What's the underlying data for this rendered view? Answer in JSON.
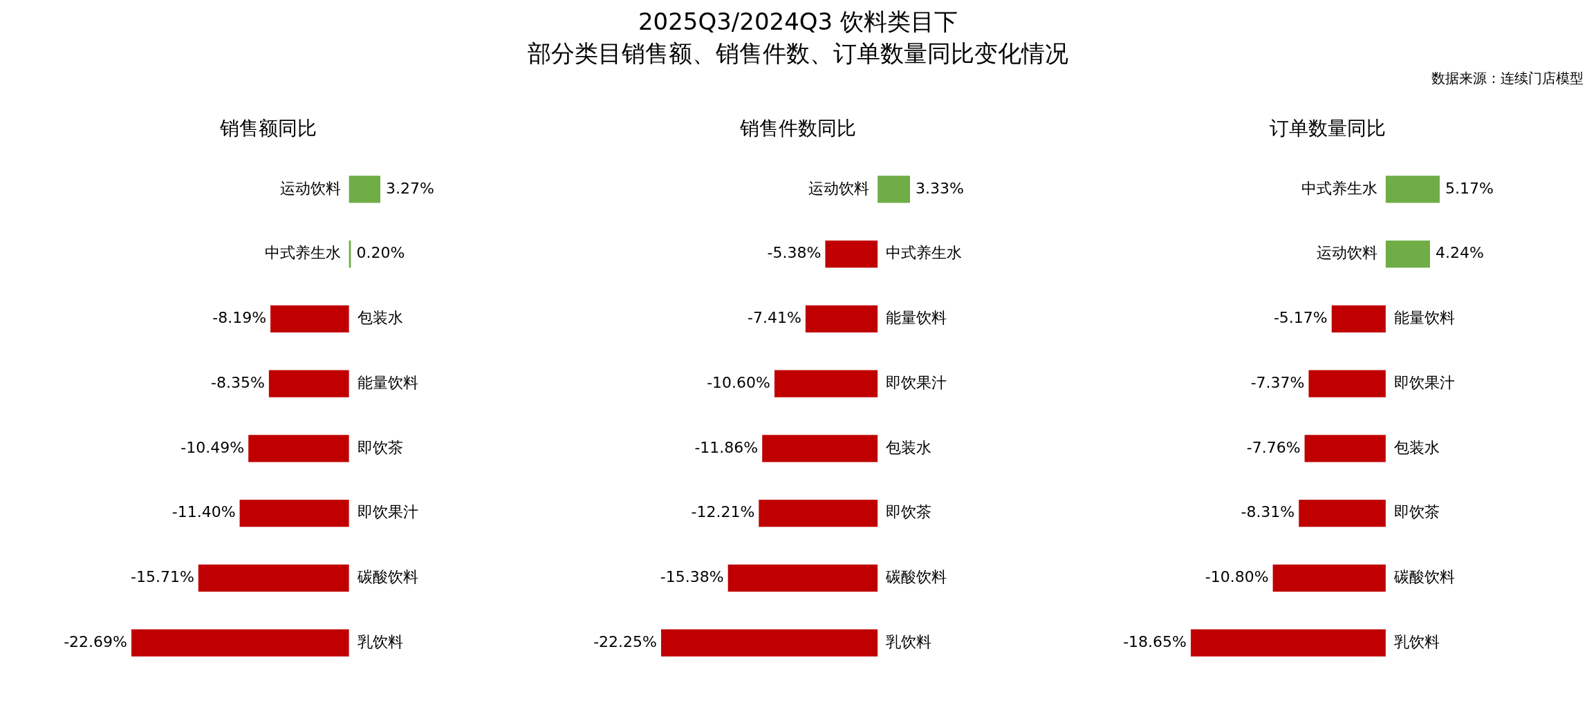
{
  "chart_data": [
    {
      "type": "bar",
      "orientation": "horizontal",
      "title": "销售额同比",
      "categories": [
        "运动饮料",
        "中式养生水",
        "包装水",
        "能量饮料",
        "即饮茶",
        "即饮果汁",
        "碳酸饮料",
        "乳饮料"
      ],
      "values": [
        3.27,
        0.2,
        -8.19,
        -8.35,
        -10.49,
        -11.4,
        -15.71,
        -22.69
      ],
      "colors": [
        "#70ad47",
        "#70ad47",
        "#c00000",
        "#c00000",
        "#c00000",
        "#c00000",
        "#c00000",
        "#c00000"
      ],
      "value_labels": [
        "3.27%",
        "0.20%",
        "-8.19%",
        "-8.35%",
        "-10.49%",
        "-11.40%",
        "-15.71%",
        "-22.69%"
      ]
    },
    {
      "type": "bar",
      "orientation": "horizontal",
      "title": "销售件数同比",
      "categories": [
        "运动饮料",
        "中式养生水",
        "能量饮料",
        "即饮果汁",
        "包装水",
        "即饮茶",
        "碳酸饮料",
        "乳饮料"
      ],
      "values": [
        3.33,
        -5.38,
        -7.41,
        -10.6,
        -11.86,
        -12.21,
        -15.38,
        -22.25
      ],
      "colors": [
        "#70ad47",
        "#c00000",
        "#c00000",
        "#c00000",
        "#c00000",
        "#c00000",
        "#c00000",
        "#c00000"
      ],
      "value_labels": [
        "3.33%",
        "-5.38%",
        "-7.41%",
        "-10.60%",
        "-11.86%",
        "-12.21%",
        "-15.38%",
        "-22.25%"
      ]
    },
    {
      "type": "bar",
      "orientation": "horizontal",
      "title": "订单数量同比",
      "categories": [
        "中式养生水",
        "运动饮料",
        "能量饮料",
        "即饮果汁",
        "包装水",
        "即饮茶",
        "碳酸饮料",
        "乳饮料"
      ],
      "values": [
        5.17,
        4.24,
        -5.17,
        -7.37,
        -7.76,
        -8.31,
        -10.8,
        -18.65
      ],
      "colors": [
        "#70ad47",
        "#70ad47",
        "#c00000",
        "#c00000",
        "#c00000",
        "#c00000",
        "#c00000",
        "#c00000"
      ],
      "value_labels": [
        "5.17%",
        "4.24%",
        "-5.17%",
        "-7.37%",
        "-7.76%",
        "-8.31%",
        "-10.80%",
        "-18.65%"
      ],
      "annotations": [
        "2025Q3/2024Q3 饮料类目下",
        "部分类目销售额、销售件数、订单数量同比变化情况",
        "数据来源：连续门店模型"
      ]
    }
  ]
}
